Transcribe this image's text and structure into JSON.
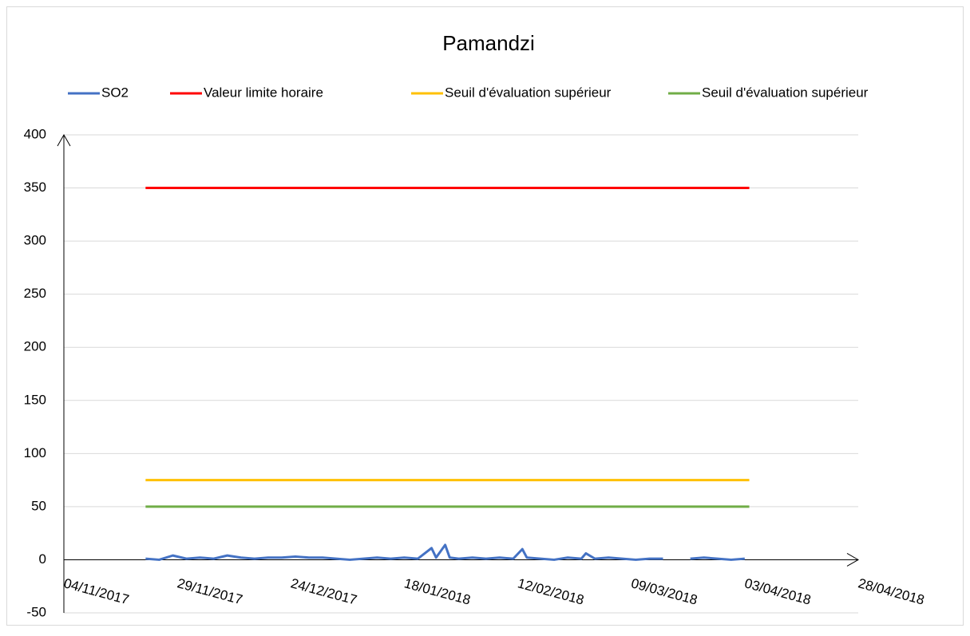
{
  "chart_data": {
    "type": "line",
    "title": "Pamandzi",
    "xlim": [
      "2017-11-04",
      "2018-04-28"
    ],
    "xticks": [
      {
        "value": "2017-11-04",
        "label": "04/11/2017"
      },
      {
        "value": "2017-11-29",
        "label": "29/11/2017"
      },
      {
        "value": "2017-12-24",
        "label": "24/12/2017"
      },
      {
        "value": "2018-01-18",
        "label": "18/01/2018"
      },
      {
        "value": "2018-02-12",
        "label": "12/02/2018"
      },
      {
        "value": "2018-03-09",
        "label": "09/03/2018"
      },
      {
        "value": "2018-04-03",
        "label": "03/04/2018"
      },
      {
        "value": "2018-04-28",
        "label": "28/04/2018"
      }
    ],
    "ylim": [
      -50,
      400
    ],
    "yticks": [
      -50,
      0,
      50,
      100,
      150,
      200,
      250,
      300,
      350,
      400
    ],
    "grid": true,
    "legend": "top",
    "series": [
      {
        "name": "SO2",
        "color": "#4472c4",
        "x": [
          "2017-11-22",
          "2017-11-25",
          "2017-11-28",
          "2017-12-01",
          "2017-12-04",
          "2017-12-07",
          "2017-12-10",
          "2017-12-13",
          "2017-12-16",
          "2017-12-19",
          "2017-12-22",
          "2017-12-25",
          "2017-12-28",
          "2017-12-31",
          "2018-01-03",
          "2018-01-06",
          "2018-01-09",
          "2018-01-12",
          "2018-01-15",
          "2018-01-18",
          "2018-01-21",
          "2018-01-24",
          "2018-01-25",
          "2018-01-27",
          "2018-01-28",
          "2018-01-30",
          "2018-02-02",
          "2018-02-05",
          "2018-02-08",
          "2018-02-11",
          "2018-02-13",
          "2018-02-14",
          "2018-02-17",
          "2018-02-20",
          "2018-02-23",
          "2018-02-26",
          "2018-02-27",
          "2018-03-01",
          "2018-03-04",
          "2018-03-07",
          "2018-03-10",
          "2018-03-13",
          "2018-03-16",
          "2018-03-19",
          "2018-03-22",
          "2018-03-25",
          "2018-03-28",
          "2018-03-31",
          "2018-04-03"
        ],
        "values": [
          1,
          0,
          4,
          1,
          2,
          1,
          4,
          2,
          1,
          2,
          2,
          3,
          2,
          2,
          1,
          0,
          1,
          2,
          1,
          2,
          1,
          11,
          2,
          14,
          2,
          1,
          2,
          1,
          2,
          1,
          10,
          2,
          1,
          0,
          2,
          1,
          6,
          1,
          2,
          1,
          0,
          1,
          1,
          null,
          1,
          2,
          1,
          0,
          1
        ]
      },
      {
        "name": "Valeur limite horaire",
        "color": "#ff0000",
        "x": [
          "2017-11-22",
          "2018-04-04"
        ],
        "values": [
          350,
          350
        ]
      },
      {
        "name": "Seuil d'évaluation supérieur",
        "color": "#ffc000",
        "x": [
          "2017-11-22",
          "2018-04-04"
        ],
        "values": [
          75,
          75
        ]
      },
      {
        "name": "Seuil d'évaluation supérieur",
        "color": "#70ad47",
        "x": [
          "2017-11-22",
          "2018-04-04"
        ],
        "values": [
          50,
          50
        ]
      }
    ]
  }
}
